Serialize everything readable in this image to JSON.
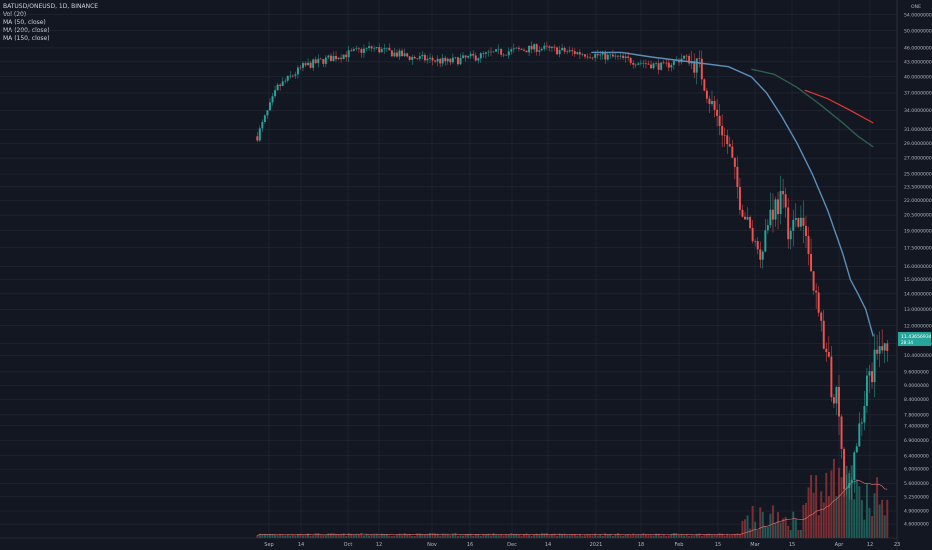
{
  "legend": {
    "title": "BATUSD/ONEUSD, 1D, BINANCE",
    "vol": "Vol (20)",
    "ma50": "MA (50, close)",
    "ma200": "MA (200, close)",
    "ma150": "MA (150, close)"
  },
  "axis_tag": "ONE",
  "price_label": "11.43656934",
  "price_label_sub": "28:34",
  "colors": {
    "background": "#131722",
    "grid": "#2a2e39",
    "up": "#26a69a",
    "down": "#ef5350",
    "ma50": "#5b8fb9",
    "ma150": "#2e5e4e",
    "ma200": "#e53935",
    "vol_ma": "#e57373"
  },
  "chart_data": {
    "type": "candlestick",
    "symbol": "BATUSD/ONEUSD",
    "interval": "1D",
    "exchange": "BINANCE",
    "y_scale": "log",
    "ylim": [
      4.3,
      58
    ],
    "y_ticks": [
      "54.0000000",
      "50.0000000",
      "46.0000000",
      "43.0000000",
      "40.0000000",
      "37.0000000",
      "34.0000000",
      "31.0000000",
      "29.0000000",
      "27.0000000",
      "25.0000000",
      "23.5000000",
      "22.0000000",
      "20.5000000",
      "19.0000000",
      "17.5000000",
      "16.0000000",
      "15.0000000",
      "14.0000000",
      "13.0000000",
      "12.0000000",
      "11.0000000",
      "10.4000000",
      "9.6000000",
      "9.0000000",
      "8.4000000",
      "7.8000000",
      "7.4000000",
      "6.9000000",
      "6.4000000",
      "6.0000000",
      "5.6000000",
      "5.2500000",
      "4.9000000",
      "4.6000000"
    ],
    "x_ticks": [
      "Sep",
      "14",
      "Oct",
      "12",
      "Nov",
      "16",
      "Dec",
      "14",
      "2021",
      "18",
      "Feb",
      "15",
      "Mar",
      "15",
      "Apr",
      "12",
      "23"
    ],
    "series": [
      {
        "name": "MA (50, close)",
        "points": [
          [
            44,
            45
          ],
          [
            48,
            45
          ],
          [
            52,
            44
          ],
          [
            57,
            43
          ],
          [
            62,
            42
          ],
          [
            65,
            40
          ],
          [
            67,
            37
          ],
          [
            69,
            33
          ],
          [
            71,
            29
          ],
          [
            73,
            25
          ],
          [
            75,
            21
          ],
          [
            77,
            17
          ],
          [
            78,
            15
          ],
          [
            79,
            14
          ],
          [
            80,
            13
          ],
          [
            81,
            11.4
          ]
        ]
      },
      {
        "name": "MA (150, close)",
        "points": [
          [
            65,
            41.5
          ],
          [
            68,
            40.5
          ],
          [
            71,
            38
          ],
          [
            74,
            35
          ],
          [
            77,
            32
          ],
          [
            79,
            30
          ],
          [
            81,
            28.5
          ]
        ]
      },
      {
        "name": "MA (200, close)",
        "points": [
          [
            72,
            37.5
          ],
          [
            75,
            36
          ],
          [
            78,
            34
          ],
          [
            81,
            32
          ]
        ]
      }
    ],
    "last_price": 11.43656934
  }
}
